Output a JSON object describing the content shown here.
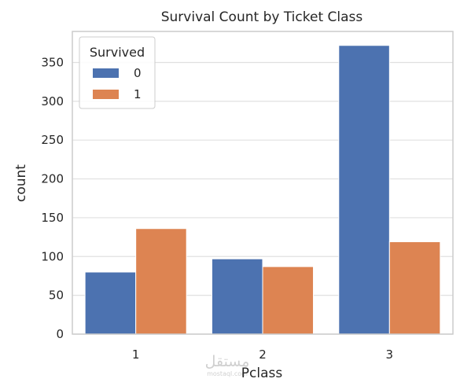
{
  "chart_data": {
    "type": "bar",
    "title": "Survival Count by Ticket Class",
    "xlabel": "Pclass",
    "ylabel": "count",
    "categories": [
      "1",
      "2",
      "3"
    ],
    "series": [
      {
        "name": "0",
        "values": [
          80,
          97,
          372
        ],
        "color": "#4c72b0"
      },
      {
        "name": "1",
        "values": [
          136,
          87,
          119
        ],
        "color": "#dd8452"
      }
    ],
    "ylim": [
      0,
      390
    ],
    "yticks": [
      0,
      50,
      100,
      150,
      200,
      250,
      300,
      350
    ],
    "grid": true,
    "legend": {
      "title": "Survived",
      "placement": "top-left"
    }
  },
  "watermark": {
    "logo_text": "مستقل",
    "sub_text": "mostaql.com"
  },
  "colors": {
    "grid": "#e0e0e0",
    "spine": "#cccccc",
    "text": "#262626"
  }
}
